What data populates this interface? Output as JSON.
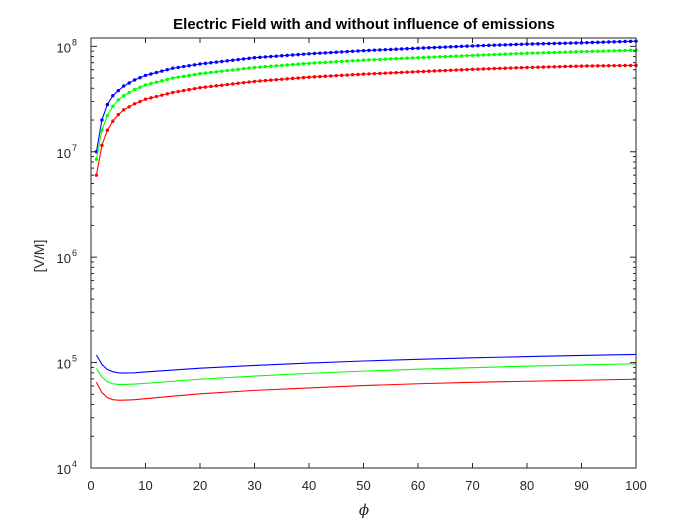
{
  "chart_data": {
    "type": "line",
    "title": "Electric Field with and without influence of emissions",
    "xlabel": "ϕ",
    "ylabel": "[V/M]",
    "xlim": [
      0,
      100
    ],
    "ylim": [
      10000,
      120000000
    ],
    "yscale": "log",
    "grid": false,
    "x_ticks": [
      {
        "value": 0,
        "label": "0"
      },
      {
        "value": 10,
        "label": "10"
      },
      {
        "value": 20,
        "label": "20"
      },
      {
        "value": 30,
        "label": "30"
      },
      {
        "value": 40,
        "label": "40"
      },
      {
        "value": 50,
        "label": "50"
      },
      {
        "value": 60,
        "label": "60"
      },
      {
        "value": 70,
        "label": "70"
      },
      {
        "value": 80,
        "label": "80"
      },
      {
        "value": 90,
        "label": "90"
      },
      {
        "value": 100,
        "label": "100"
      }
    ],
    "y_ticks": [
      {
        "value": 10000,
        "base": "10",
        "exp": "4"
      },
      {
        "value": 100000,
        "base": "10",
        "exp": "5"
      },
      {
        "value": 1000000,
        "base": "10",
        "exp": "6"
      },
      {
        "value": 10000000,
        "base": "10",
        "exp": "7"
      },
      {
        "value": 100000000,
        "base": "10",
        "exp": "8"
      }
    ],
    "series": [
      {
        "color": "#0000ff",
        "marker": "dot",
        "x": [
          1,
          2,
          3,
          4,
          5,
          6,
          8,
          10,
          15,
          20,
          30,
          40,
          50,
          60,
          70,
          80,
          90,
          100
        ],
        "y": [
          10000000,
          20000000,
          28000000,
          34000000,
          38000000,
          42000000,
          48000000,
          53000000,
          62000000,
          68000000,
          78000000,
          85000000,
          91000000,
          96000000,
          101000000,
          105000000,
          108000000,
          112000000
        ]
      },
      {
        "color": "#00ff00",
        "marker": "dot",
        "x": [
          1,
          2,
          3,
          4,
          5,
          6,
          8,
          10,
          15,
          20,
          30,
          40,
          50,
          60,
          70,
          80,
          90,
          100
        ],
        "y": [
          8500000,
          16000000,
          22000000,
          27000000,
          31000000,
          34000000,
          39000000,
          43000000,
          50000000,
          55000000,
          63000000,
          69000000,
          74000000,
          78000000,
          82000000,
          86000000,
          89000000,
          92000000
        ]
      },
      {
        "color": "#ff0000",
        "marker": "dot",
        "x": [
          1,
          2,
          3,
          4,
          5,
          6,
          8,
          10,
          15,
          20,
          30,
          40,
          50,
          60,
          70,
          80,
          90,
          100
        ],
        "y": [
          6000000,
          11500000,
          16000000,
          19500000,
          22500000,
          25000000,
          28500000,
          31500000,
          36500000,
          40500000,
          46500000,
          51000000,
          54500000,
          57500000,
          60500000,
          63000000,
          65000000,
          66000000
        ]
      },
      {
        "color": "#0000ff",
        "marker": "none",
        "x": [
          1,
          2,
          3,
          4,
          5,
          6,
          8,
          10,
          15,
          20,
          30,
          40,
          50,
          60,
          70,
          80,
          90,
          100
        ],
        "y": [
          118000,
          96000,
          86000,
          82000,
          80000,
          79500,
          80000,
          81500,
          85000,
          88500,
          94000,
          99000,
          103500,
          107500,
          111000,
          114000,
          117000,
          119500
        ]
      },
      {
        "color": "#00ff00",
        "marker": "none",
        "x": [
          1,
          2,
          3,
          4,
          5,
          6,
          8,
          10,
          15,
          20,
          30,
          40,
          50,
          60,
          70,
          80,
          90,
          100
        ],
        "y": [
          88000,
          73000,
          66000,
          63000,
          62000,
          62000,
          62500,
          63500,
          66500,
          69500,
          74500,
          79000,
          83000,
          86500,
          89500,
          92500,
          95000,
          97500
        ]
      },
      {
        "color": "#ff0000",
        "marker": "none",
        "x": [
          1,
          2,
          3,
          4,
          5,
          6,
          8,
          10,
          15,
          20,
          30,
          40,
          50,
          60,
          70,
          80,
          90,
          100
        ],
        "y": [
          65000,
          52000,
          46500,
          44500,
          44000,
          44000,
          44500,
          45500,
          48000,
          50500,
          54500,
          57500,
          60500,
          63000,
          65000,
          66500,
          68000,
          69500
        ]
      }
    ]
  }
}
